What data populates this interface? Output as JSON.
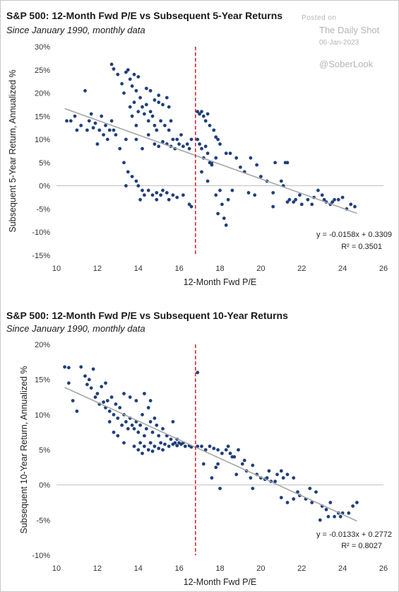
{
  "watermark": {
    "posted_on": "Posted on",
    "source": "The Daily Shot",
    "date": "06-Jan-2023",
    "handle": "@SoberLook"
  },
  "colors": {
    "points": "#1f3f7a",
    "trendline": "#a6a6a6",
    "threshold": "#d9262c",
    "axis": "#bfbfbf"
  },
  "chart_data": [
    {
      "type": "scatter",
      "title": "S&P 500: 12-Month Fwd P/E vs Subsequent 5-Year Returns",
      "subtitle": "Since January 1990, monthly data",
      "xlabel": "12-Month Fwd P/E",
      "ylabel": "Subsequent 5-Year Return, Annualized %",
      "xlim": [
        10,
        26
      ],
      "ylim": [
        -0.15,
        0.3
      ],
      "xticks": [
        10,
        12,
        14,
        16,
        18,
        20,
        22,
        24,
        26
      ],
      "xtick_labels": [
        "10",
        "12",
        "14",
        "16",
        "18",
        "20",
        "22",
        "24",
        "26"
      ],
      "yticks": [
        -0.15,
        -0.1,
        -0.05,
        0,
        0.05,
        0.1,
        0.15,
        0.2,
        0.25,
        0.3
      ],
      "ytick_labels": [
        "-15%",
        "-10%",
        "-5%",
        "0%",
        "5%",
        "10%",
        "15%",
        "20%",
        "25%",
        "30%"
      ],
      "vline_x": 16.8,
      "trendline": {
        "slope": -0.0158,
        "intercept": 0.3309,
        "x_range": [
          10.4,
          24.7
        ]
      },
      "equation": "y = -0.0158x + 0.3309",
      "r_squared": "R² = 0.3501",
      "points": [
        [
          10.5,
          0.14
        ],
        [
          10.7,
          0.14
        ],
        [
          10.9,
          0.15
        ],
        [
          11.0,
          0.12
        ],
        [
          11.2,
          0.13
        ],
        [
          11.4,
          0.205
        ],
        [
          11.5,
          0.12
        ],
        [
          11.6,
          0.14
        ],
        [
          11.7,
          0.155
        ],
        [
          11.8,
          0.125
        ],
        [
          11.9,
          0.135
        ],
        [
          12.0,
          0.09
        ],
        [
          12.1,
          0.12
        ],
        [
          12.2,
          0.15
        ],
        [
          12.3,
          0.11
        ],
        [
          12.4,
          0.13
        ],
        [
          12.5,
          0.1
        ],
        [
          12.6,
          0.12
        ],
        [
          12.7,
          0.14
        ],
        [
          12.8,
          0.12
        ],
        [
          12.9,
          0.11
        ],
        [
          12.7,
          0.262
        ],
        [
          12.8,
          0.252
        ],
        [
          13.0,
          0.24
        ],
        [
          13.2,
          0.22
        ],
        [
          13.3,
          0.2
        ],
        [
          13.4,
          0.245
        ],
        [
          13.5,
          0.25
        ],
        [
          13.6,
          0.23
        ],
        [
          13.7,
          0.215
        ],
        [
          13.8,
          0.24
        ],
        [
          13.9,
          0.205
        ],
        [
          14.0,
          0.235
        ],
        [
          14.1,
          0.19
        ],
        [
          13.6,
          0.17
        ],
        [
          13.7,
          0.15
        ],
        [
          13.8,
          0.18
        ],
        [
          13.9,
          0.13
        ],
        [
          14.0,
          0.16
        ],
        [
          14.2,
          0.17
        ],
        [
          14.3,
          0.155
        ],
        [
          14.4,
          0.175
        ],
        [
          14.5,
          0.14
        ],
        [
          14.6,
          0.16
        ],
        [
          14.7,
          0.15
        ],
        [
          14.8,
          0.13
        ],
        [
          14.9,
          0.12
        ],
        [
          15.0,
          0.18
        ],
        [
          15.1,
          0.14
        ],
        [
          15.2,
          0.175
        ],
        [
          15.3,
          0.13
        ],
        [
          15.4,
          0.19
        ],
        [
          15.5,
          0.12
        ],
        [
          15.6,
          0.14
        ],
        [
          15.7,
          0.1
        ],
        [
          14.4,
          0.21
        ],
        [
          14.6,
          0.205
        ],
        [
          14.8,
          0.185
        ],
        [
          15.0,
          0.195
        ],
        [
          15.5,
          0.17
        ],
        [
          13.1,
          0.08
        ],
        [
          13.3,
          0.05
        ],
        [
          13.5,
          0.03
        ],
        [
          13.4,
          0.1
        ],
        [
          13.9,
          0.1
        ],
        [
          14.2,
          0.08
        ],
        [
          14.5,
          0.11
        ],
        [
          14.8,
          0.09
        ],
        [
          15.0,
          0.085
        ],
        [
          15.2,
          0.095
        ],
        [
          15.4,
          0.09
        ],
        [
          15.6,
          0.085
        ],
        [
          15.8,
          0.08
        ],
        [
          16.0,
          0.09
        ],
        [
          16.2,
          0.085
        ],
        [
          16.4,
          0.09
        ],
        [
          16.5,
          0.08
        ],
        [
          16.6,
          0.1
        ],
        [
          15.9,
          0.1
        ],
        [
          16.1,
          0.11
        ],
        [
          13.7,
          0.02
        ],
        [
          13.9,
          0.01
        ],
        [
          14.0,
          0.0
        ],
        [
          14.2,
          -0.01
        ],
        [
          14.3,
          -0.02
        ],
        [
          14.5,
          -0.01
        ],
        [
          14.7,
          -0.02
        ],
        [
          14.9,
          -0.015
        ],
        [
          15.1,
          -0.02
        ],
        [
          15.2,
          -0.01
        ],
        [
          15.4,
          -0.015
        ],
        [
          15.5,
          -0.03
        ],
        [
          15.7,
          -0.02
        ],
        [
          15.9,
          -0.025
        ],
        [
          16.2,
          -0.02
        ],
        [
          14.1,
          -0.03
        ],
        [
          14.9,
          -0.03
        ],
        [
          16.5,
          -0.04
        ],
        [
          16.6,
          -0.045
        ],
        [
          13.4,
          0.0
        ],
        [
          16.9,
          0.16
        ],
        [
          17.0,
          0.155
        ],
        [
          17.1,
          0.16
        ],
        [
          17.2,
          0.15
        ],
        [
          17.3,
          0.14
        ],
        [
          17.4,
          0.155
        ],
        [
          17.5,
          0.13
        ],
        [
          16.9,
          0.1
        ],
        [
          17.0,
          0.09
        ],
        [
          17.1,
          0.08
        ],
        [
          17.2,
          0.06
        ],
        [
          17.4,
          0.07
        ],
        [
          17.5,
          0.05
        ],
        [
          17.6,
          0.05
        ],
        [
          17.8,
          0.06
        ],
        [
          17.9,
          0.1
        ],
        [
          17.7,
          0.12
        ],
        [
          17.8,
          0.105
        ],
        [
          18.0,
          0.09
        ],
        [
          18.3,
          0.07
        ],
        [
          18.5,
          0.07
        ],
        [
          18.8,
          0.06
        ],
        [
          17.1,
          0.03
        ],
        [
          17.4,
          0.01
        ],
        [
          17.8,
          -0.02
        ],
        [
          17.9,
          -0.06
        ],
        [
          18.1,
          -0.04
        ],
        [
          18.2,
          -0.07
        ],
        [
          18.3,
          -0.085
        ],
        [
          18.4,
          -0.03
        ],
        [
          18.0,
          -0.01
        ],
        [
          18.6,
          -0.01
        ],
        [
          19.0,
          0.04
        ],
        [
          19.2,
          0.03
        ],
        [
          19.4,
          -0.015
        ],
        [
          19.5,
          0.06
        ],
        [
          19.8,
          0.045
        ],
        [
          20.0,
          0.02
        ],
        [
          20.3,
          0.01
        ],
        [
          20.6,
          -0.015
        ],
        [
          20.7,
          0.05
        ],
        [
          21.0,
          0.01
        ],
        [
          21.1,
          0.0
        ],
        [
          21.2,
          0.05
        ],
        [
          21.3,
          0.05
        ],
        [
          21.4,
          -0.03
        ],
        [
          21.6,
          -0.035
        ],
        [
          21.9,
          -0.02
        ],
        [
          22.3,
          -0.03
        ],
        [
          22.6,
          -0.025
        ],
        [
          22.8,
          -0.01
        ],
        [
          23.0,
          -0.02
        ],
        [
          23.2,
          -0.035
        ],
        [
          23.4,
          -0.04
        ],
        [
          23.6,
          -0.03
        ],
        [
          23.8,
          -0.03
        ],
        [
          24.0,
          -0.025
        ],
        [
          24.2,
          -0.05
        ],
        [
          24.4,
          -0.04
        ],
        [
          24.6,
          -0.045
        ],
        [
          21.7,
          -0.03
        ],
        [
          22.0,
          -0.04
        ],
        [
          22.5,
          -0.04
        ],
        [
          23.1,
          -0.03
        ],
        [
          23.5,
          -0.035
        ],
        [
          20.6,
          -0.045
        ],
        [
          21.3,
          -0.035
        ],
        [
          19.7,
          -0.02
        ],
        [
          17.6,
          0.045
        ],
        [
          17.3,
          0.085
        ]
      ]
    },
    {
      "type": "scatter",
      "title": "S&P 500: 12-Month Fwd P/E vs Subsequent 10-Year Returns",
      "subtitle": "Since January 1990, monthly data",
      "xlabel": "12-Month Fwd P/E",
      "ylabel": "Subsequent 10-Year Return, Annualized %",
      "xlim": [
        10,
        26
      ],
      "ylim": [
        -0.1,
        0.2
      ],
      "xticks": [
        10,
        12,
        14,
        16,
        18,
        20,
        22,
        24,
        26
      ],
      "xtick_labels": [
        "10",
        "12",
        "14",
        "16",
        "18",
        "20",
        "22",
        "24",
        "26"
      ],
      "yticks": [
        -0.1,
        -0.05,
        0,
        0.05,
        0.1,
        0.15,
        0.2
      ],
      "ytick_labels": [
        "-10%",
        "-5%",
        "0%",
        "5%",
        "10%",
        "15%",
        "20%"
      ],
      "vline_x": 16.8,
      "trendline": {
        "slope": -0.0133,
        "intercept": 0.2772,
        "x_range": [
          10.4,
          24.7
        ]
      },
      "equation": "y = -0.0133x + 0.2772",
      "r_squared": "R² = 0.8027",
      "points": [
        [
          10.4,
          0.168
        ],
        [
          10.6,
          0.167
        ],
        [
          10.6,
          0.145
        ],
        [
          10.8,
          0.12
        ],
        [
          11.0,
          0.105
        ],
        [
          11.2,
          0.168
        ],
        [
          11.4,
          0.155
        ],
        [
          11.5,
          0.143
        ],
        [
          11.6,
          0.15
        ],
        [
          11.7,
          0.138
        ],
        [
          11.8,
          0.165
        ],
        [
          11.9,
          0.125
        ],
        [
          12.0,
          0.13
        ],
        [
          12.1,
          0.115
        ],
        [
          12.2,
          0.14
        ],
        [
          12.3,
          0.118
        ],
        [
          12.4,
          0.11
        ],
        [
          12.5,
          0.12
        ],
        [
          12.6,
          0.105
        ],
        [
          12.7,
          0.125
        ],
        [
          12.8,
          0.1
        ],
        [
          12.9,
          0.115
        ],
        [
          13.0,
          0.095
        ],
        [
          13.1,
          0.11
        ],
        [
          13.2,
          0.085
        ],
        [
          13.3,
          0.1
        ],
        [
          13.4,
          0.09
        ],
        [
          13.5,
          0.08
        ],
        [
          13.6,
          0.095
        ],
        [
          13.7,
          0.085
        ],
        [
          13.8,
          0.08
        ],
        [
          13.9,
          0.09
        ],
        [
          14.0,
          0.075
        ],
        [
          14.1,
          0.085
        ],
        [
          14.2,
          0.1
        ],
        [
          14.3,
          0.07
        ],
        [
          14.4,
          0.08
        ],
        [
          14.5,
          0.11
        ],
        [
          14.6,
          0.09
        ],
        [
          14.7,
          0.075
        ],
        [
          14.8,
          0.095
        ],
        [
          14.9,
          0.085
        ],
        [
          15.0,
          0.07
        ],
        [
          15.2,
          0.08
        ],
        [
          15.4,
          0.07
        ],
        [
          15.6,
          0.065
        ],
        [
          15.7,
          0.09
        ],
        [
          15.9,
          0.065
        ],
        [
          16.0,
          0.06
        ],
        [
          16.2,
          0.06
        ],
        [
          13.3,
          0.13
        ],
        [
          13.6,
          0.125
        ],
        [
          13.9,
          0.12
        ],
        [
          14.3,
          0.13
        ],
        [
          14.6,
          0.12
        ],
        [
          12.8,
          0.075
        ],
        [
          13.0,
          0.07
        ],
        [
          12.6,
          0.09
        ],
        [
          13.3,
          0.06
        ],
        [
          13.8,
          0.055
        ],
        [
          14.0,
          0.05
        ],
        [
          14.1,
          0.06
        ],
        [
          14.3,
          0.055
        ],
        [
          14.5,
          0.05
        ],
        [
          14.6,
          0.06
        ],
        [
          14.8,
          0.055
        ],
        [
          15.0,
          0.052
        ],
        [
          15.1,
          0.06
        ],
        [
          15.3,
          0.058
        ],
        [
          15.5,
          0.055
        ],
        [
          15.7,
          0.058
        ],
        [
          15.9,
          0.056
        ],
        [
          16.1,
          0.058
        ],
        [
          16.3,
          0.055
        ],
        [
          16.5,
          0.056
        ],
        [
          16.6,
          0.054
        ],
        [
          14.2,
          0.045
        ],
        [
          14.7,
          0.048
        ],
        [
          15.2,
          0.05
        ],
        [
          15.8,
          0.06
        ],
        [
          16.9,
          0.16
        ],
        [
          16.9,
          0.055
        ],
        [
          17.1,
          0.055
        ],
        [
          17.3,
          0.05
        ],
        [
          17.5,
          0.055
        ],
        [
          17.7,
          0.052
        ],
        [
          17.9,
          0.05
        ],
        [
          18.1,
          0.045
        ],
        [
          18.3,
          0.05
        ],
        [
          18.5,
          0.045
        ],
        [
          18.7,
          0.04
        ],
        [
          18.9,
          0.05
        ],
        [
          19.1,
          0.03
        ],
        [
          19.3,
          0.02
        ],
        [
          19.5,
          0.01
        ],
        [
          17.2,
          0.03
        ],
        [
          17.6,
          0.01
        ],
        [
          17.8,
          0.025
        ],
        [
          18.0,
          -0.005
        ],
        [
          18.8,
          0.015
        ],
        [
          19.6,
          -0.005
        ],
        [
          19.8,
          0.015
        ],
        [
          20.0,
          0.01
        ],
        [
          20.3,
          0.01
        ],
        [
          20.5,
          0.005
        ],
        [
          20.8,
          0.015
        ],
        [
          21.1,
          0.01
        ],
        [
          21.3,
          0.015
        ],
        [
          21.6,
          0.01
        ],
        [
          21.0,
          0.02
        ],
        [
          20.4,
          0.02
        ],
        [
          20.7,
          0.005
        ],
        [
          19.6,
          0.028
        ],
        [
          20.2,
          0.008
        ],
        [
          21.0,
          -0.018
        ],
        [
          21.3,
          -0.025
        ],
        [
          21.6,
          -0.02
        ],
        [
          21.9,
          -0.015
        ],
        [
          22.2,
          -0.02
        ],
        [
          22.5,
          -0.025
        ],
        [
          22.7,
          -0.01
        ],
        [
          23.0,
          -0.03
        ],
        [
          23.2,
          -0.035
        ],
        [
          23.4,
          -0.025
        ],
        [
          23.6,
          -0.045
        ],
        [
          23.8,
          -0.04
        ],
        [
          24.0,
          -0.04
        ],
        [
          24.3,
          -0.04
        ],
        [
          24.5,
          -0.03
        ],
        [
          24.7,
          -0.025
        ],
        [
          22.9,
          -0.05
        ],
        [
          23.3,
          -0.045
        ],
        [
          23.9,
          -0.045
        ],
        [
          21.8,
          -0.01
        ],
        [
          22.4,
          -0.005
        ],
        [
          17.9,
          0.03
        ],
        [
          19.2,
          0.035
        ],
        [
          18.6,
          0.04
        ],
        [
          18.4,
          0.055
        ],
        [
          12.4,
          0.145
        ]
      ]
    }
  ]
}
